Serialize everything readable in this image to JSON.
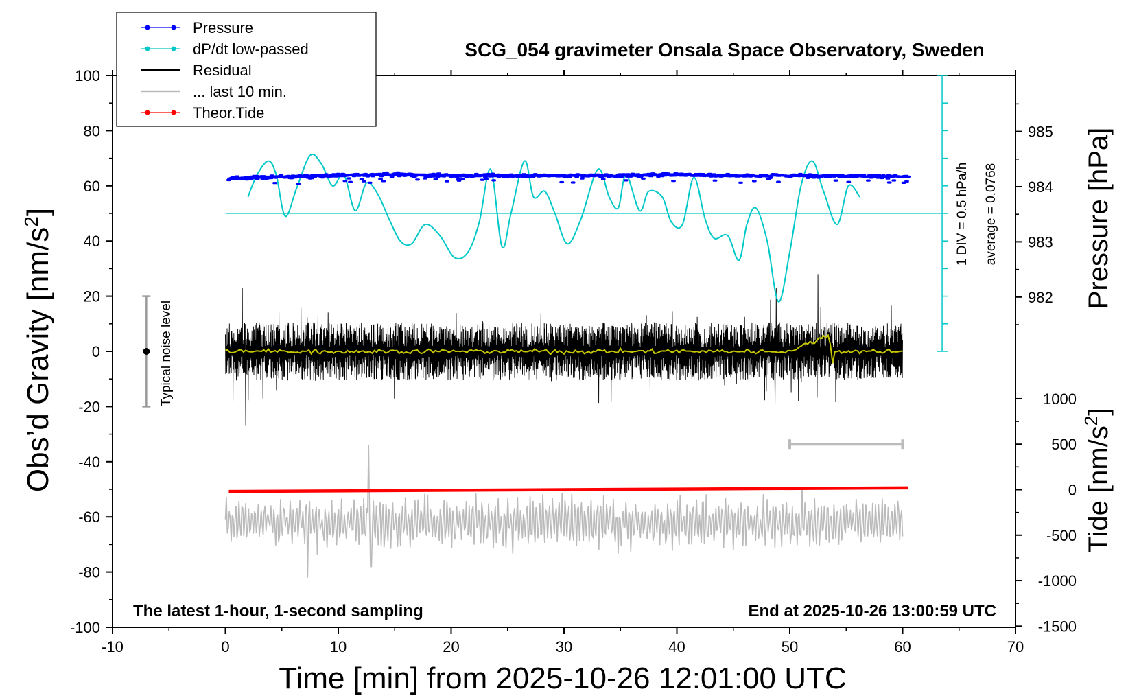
{
  "chart_data": {
    "type": "line",
    "title": "SCG_054 gravimeter Onsala Space Observatory, Sweden",
    "xlabel": "Time [min] from 2025-10-26 12:01:00 UTC",
    "ylabel_left": "Obs’d Gravity [nm/s²]",
    "ylabel_left_base": "Obs’d Gravity [nm/s",
    "ylabel_left_sup": "2",
    "ylabel_left_end": "]",
    "ylabel_right_pressure": "Pressure [hPa]",
    "ylabel_right_tide": "Tide [nm/s²]",
    "ylabel_right_tide_base": "Tide [nm/s",
    "ylabel_right_tide_sup": "2",
    "ylabel_right_tide_end": "]",
    "xlim": [
      -10,
      70
    ],
    "ylim_gravity": [
      -100,
      100
    ],
    "x_ticks": [
      "-10",
      "0",
      "10",
      "20",
      "30",
      "40",
      "50",
      "60",
      "70"
    ],
    "y_ticks_gravity": [
      "100",
      "80",
      "60",
      "40",
      "20",
      "0",
      "-20",
      "-40",
      "-60",
      "-80",
      "-100"
    ],
    "y_ticks_pressure": [
      "985",
      "984",
      "983",
      "982"
    ],
    "y_ticks_tide": [
      "1000",
      "500",
      "0",
      "-500",
      "-1000",
      "-1500"
    ],
    "legend_placement": "top-left",
    "legend": [
      {
        "label": "Pressure",
        "color": "#0000ff",
        "marker": "dot"
      },
      {
        "label": "dP/dt low-passed",
        "color": "#00c8c8",
        "marker": "dot"
      },
      {
        "label": "Residual",
        "color": "#000000",
        "marker": "line"
      },
      {
        "label": "... last 10 min.",
        "color": "#bbbbbb",
        "marker": "line"
      },
      {
        "label": "Theor.Tide",
        "color": "#ff0000",
        "marker": "dot"
      }
    ],
    "annotations": {
      "bottom_left": "The latest 1-hour, 1-second sampling",
      "bottom_right": "End at 2025-10-26 13:00:59 UTC",
      "noise": "Typical noise level",
      "div_scale": "1 DIV = 0.5 hPa/h",
      "average": "average = 0.0768"
    },
    "noise_bar": {
      "x": -7,
      "y": 0,
      "range": [
        -20,
        20
      ]
    },
    "last10_bar": {
      "x": [
        50,
        60
      ],
      "y_tide": 500
    },
    "series": [
      {
        "name": "Pressure",
        "axis": "pressure",
        "x": [
          0.3,
          5,
          10,
          15,
          20,
          25,
          30,
          35,
          40,
          45,
          50,
          55,
          60.5
        ],
        "values": [
          984.15,
          984.18,
          984.2,
          984.22,
          984.2,
          984.2,
          984.2,
          984.2,
          984.22,
          984.2,
          984.2,
          984.2,
          984.18
        ]
      },
      {
        "name": "dP/dt low-passed",
        "axis": "gravity",
        "x": [
          2,
          2.8,
          3.8,
          4.5,
          5.3,
          6.3,
          7.5,
          8.5,
          9.5,
          10.5,
          11.5,
          12.5,
          13.5,
          14.5,
          15.5,
          16.5,
          17.7,
          19,
          20.3,
          21.5,
          22.5,
          23.5,
          24.5,
          25.3,
          26.5,
          27.3,
          28.3,
          29.2,
          30.3,
          31.5,
          33,
          34,
          34.8,
          35.5,
          36.7,
          37.5,
          38.7,
          39.5,
          40.5,
          41.5,
          42.5,
          43.3,
          44.5,
          45.5,
          46.2,
          47,
          48,
          49,
          50,
          51,
          52,
          53,
          54.2,
          55.2,
          56.2
        ],
        "values": [
          56,
          64,
          69,
          64,
          49,
          59,
          71,
          68,
          60,
          64,
          51,
          61,
          57,
          48,
          40,
          39,
          46,
          42,
          34,
          36,
          47,
          66,
          38,
          50,
          69,
          56,
          58,
          50,
          39,
          48,
          66,
          56,
          52,
          64,
          51,
          58,
          56,
          47,
          46,
          63,
          48,
          41,
          42,
          33,
          46,
          52,
          40,
          18,
          36,
          60,
          69,
          58,
          46,
          60,
          56
        ]
      },
      {
        "name": "average",
        "axis": "gravity",
        "x": [
          0,
          63.5
        ],
        "values": [
          50,
          50
        ]
      },
      {
        "name": "Residual",
        "axis": "gravity",
        "x_range": [
          0,
          60
        ],
        "amplitude_typical": 10,
        "extremes": [
          [
            1.8,
            -27
          ],
          [
            1.5,
            23
          ],
          [
            48.8,
            23
          ],
          [
            52.5,
            28
          ],
          [
            48.7,
            -19
          ]
        ]
      },
      {
        "name": "Residual smoothed",
        "axis": "gravity",
        "x": [
          0,
          10,
          20,
          30,
          40,
          50,
          53.5,
          53.8,
          54,
          60
        ],
        "values": [
          0,
          0,
          0,
          0,
          0,
          0,
          6,
          -4,
          0,
          0
        ]
      },
      {
        "name": "... last 10 min.",
        "axis": "gravity",
        "x_range": [
          0,
          60
        ],
        "center": -62,
        "amplitude_typical": 8,
        "extremes": [
          [
            12.7,
            -34
          ],
          [
            7.3,
            -82
          ],
          [
            12.9,
            -78
          ]
        ]
      },
      {
        "name": "Theor.Tide",
        "axis": "tide",
        "x": [
          0.3,
          60.5
        ],
        "values": [
          -20,
          20
        ]
      }
    ]
  }
}
